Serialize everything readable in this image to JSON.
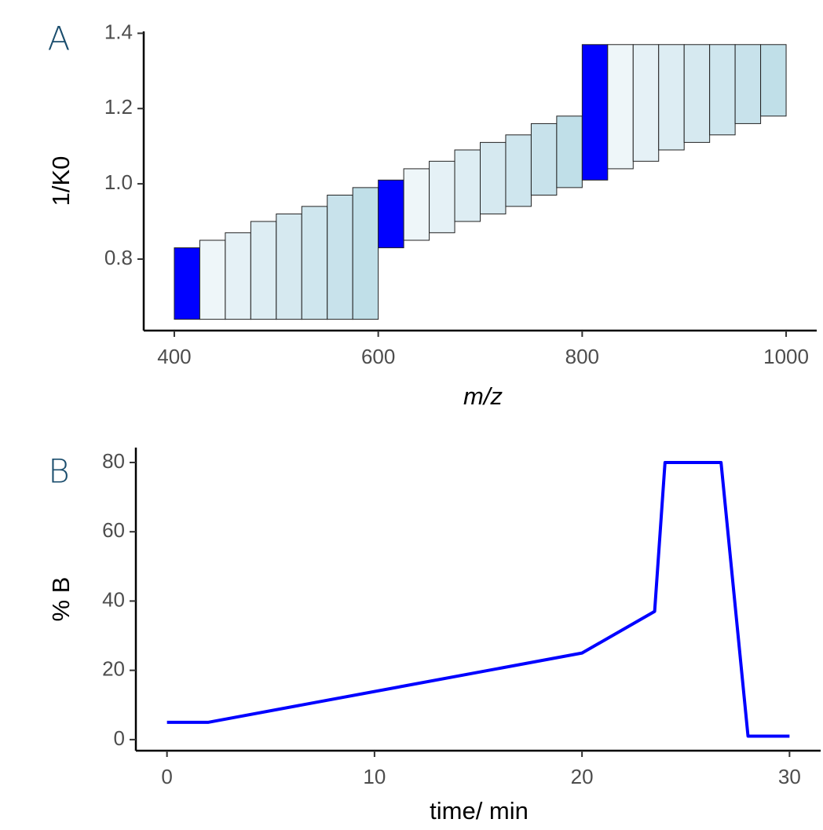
{
  "chart_data": [
    {
      "type": "tile",
      "panel_label": "A",
      "x_label": "m/z",
      "y_label": "1/K0",
      "x0": [
        400,
        425,
        450,
        475,
        500,
        525,
        550,
        575,
        600,
        625,
        650,
        675,
        700,
        725,
        750,
        775,
        800,
        825,
        850,
        875,
        900,
        925,
        950,
        975
      ],
      "x1": [
        425,
        450,
        475,
        500,
        525,
        550,
        575,
        600,
        625,
        650,
        675,
        700,
        725,
        750,
        775,
        800,
        825,
        850,
        875,
        900,
        925,
        950,
        975,
        1000
      ],
      "y0": [
        0.64,
        0.64,
        0.64,
        0.64,
        0.64,
        0.64,
        0.64,
        0.64,
        0.83,
        0.85,
        0.87,
        0.9,
        0.92,
        0.94,
        0.97,
        0.99,
        1.01,
        1.04,
        1.06,
        1.09,
        1.11,
        1.13,
        1.16,
        1.18
      ],
      "y1": [
        0.83,
        0.85,
        0.87,
        0.9,
        0.92,
        0.94,
        0.97,
        0.99,
        1.01,
        1.04,
        1.06,
        1.09,
        1.11,
        1.13,
        1.16,
        1.18,
        1.37,
        1.37,
        1.37,
        1.37,
        1.37,
        1.37,
        1.37,
        1.37
      ],
      "colors": [
        "#0000ff",
        "#eef6f9",
        "#e5f1f6",
        "#ddedf3",
        "#d6e9f0",
        "#cfe6ee",
        "#c8e2eb",
        "#c0dfe8",
        "#0000ff",
        "#eef6f9",
        "#e5f1f6",
        "#ddedf3",
        "#d6e9f0",
        "#cfe6ee",
        "#c8e2eb",
        "#c0dfe8",
        "#0000ff",
        "#eef6f9",
        "#e5f1f6",
        "#ddedf3",
        "#d6e9f0",
        "#cfe6ee",
        "#c8e2eb",
        "#c0dfe8"
      ],
      "xlim": [
        370,
        1030
      ],
      "ylim": [
        0.61,
        1.405
      ],
      "xticks": [
        400,
        600,
        800,
        1000
      ],
      "yticks": [
        0.8,
        {
          "value": 1,
          "label": "1.0"
        },
        1.2,
        1.4
      ]
    },
    {
      "type": "line",
      "panel_label": "B",
      "x_label": "time/ min",
      "y_label": "% B",
      "x": [
        0,
        2,
        20,
        23.5,
        24,
        26.7,
        28,
        30
      ],
      "series": [
        {
          "color": "#0000ff",
          "values": [
            5,
            5,
            25,
            37,
            80,
            80,
            1,
            1
          ]
        }
      ],
      "xlim": [
        -1.5,
        31.5
      ],
      "ylim": [
        -3.2,
        84.3
      ],
      "xticks": [
        0,
        10,
        20,
        30
      ],
      "yticks": [
        0,
        20,
        40,
        60,
        80
      ]
    }
  ]
}
